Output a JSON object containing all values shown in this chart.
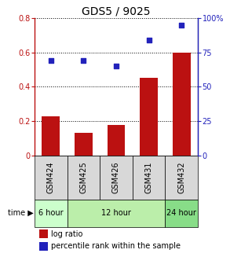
{
  "title": "GDS5 / 9025",
  "categories": [
    "GSM424",
    "GSM425",
    "GSM426",
    "GSM431",
    "GSM432"
  ],
  "bar_values": [
    0.23,
    0.13,
    0.18,
    0.45,
    0.6
  ],
  "scatter_values_pct": [
    69,
    69,
    65,
    84,
    95
  ],
  "bar_color": "#bb1111",
  "scatter_color": "#2222bb",
  "ylim_left": [
    0,
    0.8
  ],
  "ylim_right": [
    0,
    100
  ],
  "yticks_left": [
    0,
    0.2,
    0.4,
    0.6,
    0.8
  ],
  "yticks_right": [
    0,
    25,
    50,
    75,
    100
  ],
  "ytick_labels_left": [
    "0",
    "0.2",
    "0.4",
    "0.6",
    "0.8"
  ],
  "ytick_labels_right": [
    "0",
    "25",
    "50",
    "75",
    "100%"
  ],
  "time_labels": [
    "6 hour",
    "12 hour",
    "24 hour"
  ],
  "time_group_indices": [
    [
      0
    ],
    [
      1,
      2,
      3
    ],
    [
      4
    ]
  ],
  "time_colors": [
    "#ccffcc",
    "#bbeeaa",
    "#88dd88"
  ],
  "legend_items": [
    "log ratio",
    "percentile rank within the sample"
  ],
  "legend_colors": [
    "#bb1111",
    "#2222bb"
  ],
  "title_fontsize": 10,
  "tick_fontsize": 7,
  "label_fontsize": 7
}
